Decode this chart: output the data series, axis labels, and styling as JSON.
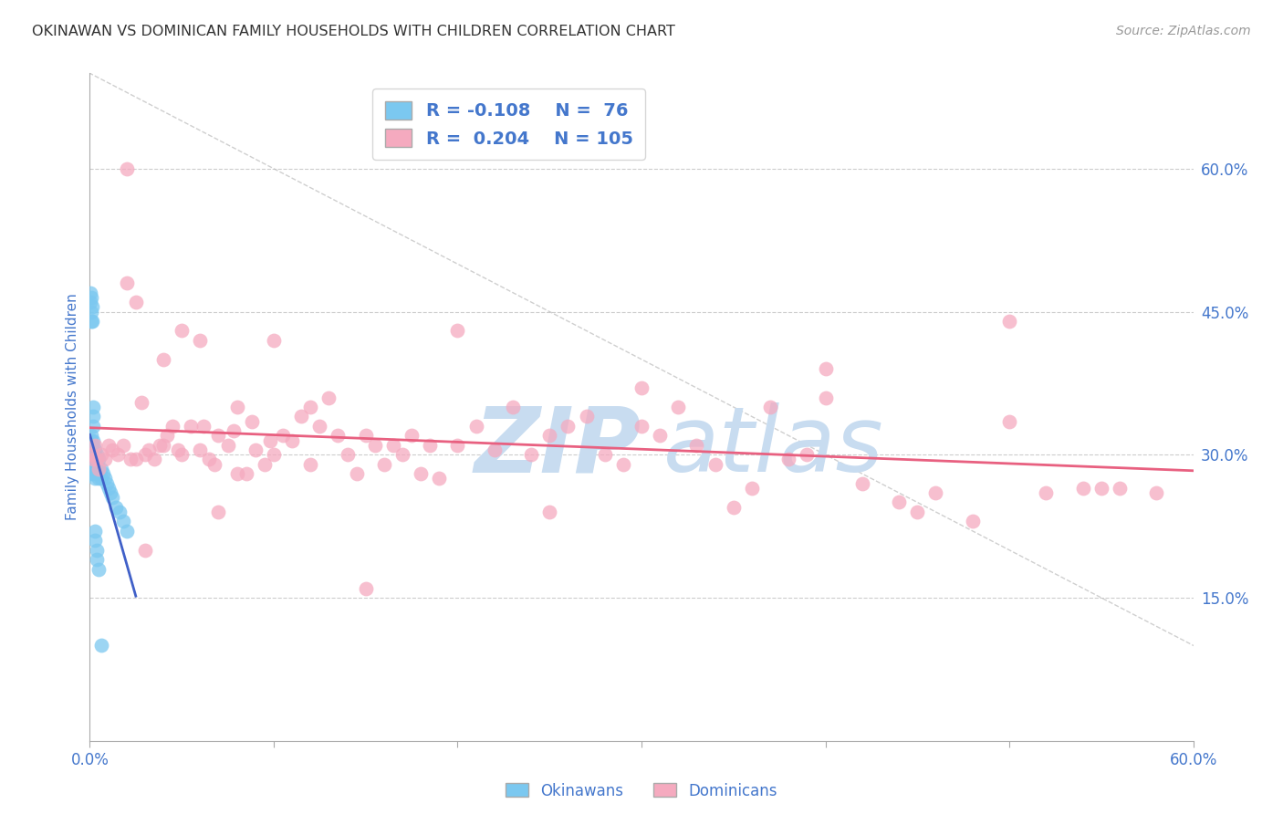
{
  "title": "OKINAWAN VS DOMINICAN FAMILY HOUSEHOLDS WITH CHILDREN CORRELATION CHART",
  "source": "Source: ZipAtlas.com",
  "ylabel": "Family Households with Children",
  "xlim": [
    0.0,
    0.6
  ],
  "ylim": [
    0.0,
    0.7
  ],
  "legend_R_okinawan": "-0.108",
  "legend_N_okinawan": "76",
  "legend_R_dominican": "0.204",
  "legend_N_dominican": "105",
  "okinawan_color": "#7BC8F0",
  "dominican_color": "#F5AABF",
  "okinawan_line_color": "#4060C8",
  "dominican_line_color": "#E86080",
  "diagonal_color": "#BBBBBB",
  "background_color": "#FFFFFF",
  "grid_color": "#CCCCCC",
  "watermark_color": "#C8DCF0",
  "tick_label_color": "#4477CC",
  "ok_x": [
    0.0005,
    0.0005,
    0.0005,
    0.0005,
    0.0005,
    0.0005,
    0.001,
    0.001,
    0.001,
    0.001,
    0.001,
    0.001,
    0.001,
    0.001,
    0.001,
    0.001,
    0.001,
    0.001,
    0.001,
    0.001,
    0.001,
    0.001,
    0.0015,
    0.0015,
    0.0015,
    0.0015,
    0.002,
    0.002,
    0.002,
    0.002,
    0.002,
    0.002,
    0.002,
    0.002,
    0.002,
    0.003,
    0.003,
    0.003,
    0.003,
    0.003,
    0.003,
    0.004,
    0.004,
    0.004,
    0.004,
    0.005,
    0.005,
    0.005,
    0.006,
    0.006,
    0.007,
    0.008,
    0.009,
    0.01,
    0.011,
    0.012,
    0.014,
    0.016,
    0.018,
    0.02,
    0.0005,
    0.0005,
    0.001,
    0.001,
    0.001,
    0.0015,
    0.0015,
    0.002,
    0.002,
    0.002,
    0.003,
    0.003,
    0.004,
    0.004,
    0.005,
    0.006
  ],
  "ok_y": [
    0.3,
    0.305,
    0.31,
    0.295,
    0.285,
    0.29,
    0.3,
    0.305,
    0.31,
    0.295,
    0.29,
    0.285,
    0.315,
    0.32,
    0.3,
    0.295,
    0.29,
    0.285,
    0.28,
    0.3,
    0.305,
    0.295,
    0.3,
    0.305,
    0.295,
    0.29,
    0.3,
    0.305,
    0.31,
    0.295,
    0.285,
    0.29,
    0.28,
    0.315,
    0.295,
    0.3,
    0.305,
    0.295,
    0.285,
    0.29,
    0.275,
    0.3,
    0.295,
    0.285,
    0.28,
    0.295,
    0.285,
    0.275,
    0.285,
    0.275,
    0.28,
    0.275,
    0.27,
    0.265,
    0.26,
    0.255,
    0.245,
    0.24,
    0.23,
    0.22,
    0.46,
    0.47,
    0.44,
    0.45,
    0.465,
    0.44,
    0.455,
    0.35,
    0.34,
    0.33,
    0.22,
    0.21,
    0.2,
    0.19,
    0.18,
    0.1
  ],
  "dom_x": [
    0.001,
    0.002,
    0.003,
    0.004,
    0.005,
    0.006,
    0.008,
    0.01,
    0.012,
    0.015,
    0.018,
    0.02,
    0.022,
    0.025,
    0.028,
    0.03,
    0.032,
    0.035,
    0.038,
    0.04,
    0.042,
    0.045,
    0.048,
    0.05,
    0.055,
    0.06,
    0.062,
    0.065,
    0.068,
    0.07,
    0.075,
    0.078,
    0.08,
    0.085,
    0.088,
    0.09,
    0.095,
    0.098,
    0.1,
    0.105,
    0.11,
    0.115,
    0.12,
    0.125,
    0.13,
    0.135,
    0.14,
    0.145,
    0.15,
    0.155,
    0.16,
    0.165,
    0.17,
    0.175,
    0.18,
    0.185,
    0.19,
    0.2,
    0.21,
    0.22,
    0.23,
    0.24,
    0.25,
    0.26,
    0.27,
    0.28,
    0.29,
    0.3,
    0.31,
    0.32,
    0.33,
    0.34,
    0.36,
    0.37,
    0.38,
    0.39,
    0.4,
    0.42,
    0.44,
    0.46,
    0.48,
    0.5,
    0.52,
    0.54,
    0.56,
    0.58,
    0.025,
    0.04,
    0.06,
    0.08,
    0.12,
    0.2,
    0.3,
    0.4,
    0.5,
    0.03,
    0.07,
    0.15,
    0.25,
    0.35,
    0.45,
    0.55,
    0.02,
    0.05,
    0.1
  ],
  "dom_y": [
    0.3,
    0.295,
    0.31,
    0.295,
    0.285,
    0.3,
    0.295,
    0.31,
    0.305,
    0.3,
    0.31,
    0.48,
    0.295,
    0.295,
    0.355,
    0.3,
    0.305,
    0.295,
    0.31,
    0.31,
    0.32,
    0.33,
    0.305,
    0.3,
    0.33,
    0.305,
    0.33,
    0.295,
    0.29,
    0.32,
    0.31,
    0.325,
    0.28,
    0.28,
    0.335,
    0.305,
    0.29,
    0.315,
    0.3,
    0.32,
    0.315,
    0.34,
    0.29,
    0.33,
    0.36,
    0.32,
    0.3,
    0.28,
    0.32,
    0.31,
    0.29,
    0.31,
    0.3,
    0.32,
    0.28,
    0.31,
    0.275,
    0.31,
    0.33,
    0.305,
    0.35,
    0.3,
    0.32,
    0.33,
    0.34,
    0.3,
    0.29,
    0.33,
    0.32,
    0.35,
    0.31,
    0.29,
    0.265,
    0.35,
    0.295,
    0.3,
    0.36,
    0.27,
    0.25,
    0.26,
    0.23,
    0.335,
    0.26,
    0.265,
    0.265,
    0.26,
    0.46,
    0.4,
    0.42,
    0.35,
    0.35,
    0.43,
    0.37,
    0.39,
    0.44,
    0.2,
    0.24,
    0.16,
    0.24,
    0.245,
    0.24,
    0.265,
    0.6,
    0.43,
    0.42
  ]
}
